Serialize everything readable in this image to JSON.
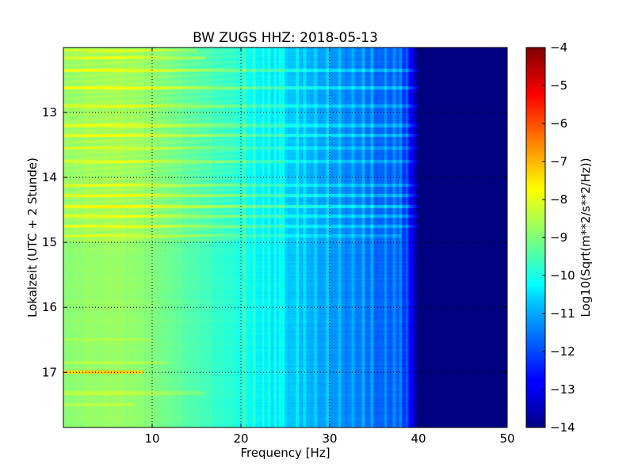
{
  "chart_data": {
    "type": "heatmap",
    "title": "BW ZUGS HHZ: 2018-05-13",
    "xlabel": "Frequency [Hz]",
    "ylabel": "Lokalzeit (UTC + 2 Stunde)",
    "xlim": [
      0,
      50
    ],
    "ylim": [
      12.0,
      17.85
    ],
    "y_inverted": true,
    "xticks": [
      10,
      20,
      30,
      40,
      50
    ],
    "yticks": [
      13,
      14,
      15,
      16,
      17
    ],
    "grid": true,
    "colormap": "jet",
    "colorbar": {
      "label": "Log10(Sqrt(m**2/s**2/Hz))",
      "range": [
        -14,
        -4
      ],
      "ticks": [
        -14,
        -13,
        -12,
        -11,
        -10,
        -9,
        -8,
        -7,
        -6,
        -5,
        -4
      ]
    },
    "spectral_profile": {
      "frequency_hz": [
        0,
        2,
        5,
        8,
        10,
        12,
        15,
        18,
        20,
        22,
        24,
        26,
        28,
        30,
        32,
        34,
        36,
        37,
        38,
        38.5,
        39,
        39.5,
        40,
        42,
        45,
        50
      ],
      "log10_amplitude": [
        -8.9,
        -8.8,
        -8.75,
        -8.8,
        -9.0,
        -9.2,
        -9.5,
        -9.8,
        -10.0,
        -10.35,
        -10.6,
        -10.85,
        -11.05,
        -11.25,
        -11.45,
        -11.6,
        -11.8,
        -11.85,
        -12.0,
        -12.3,
        -12.7,
        -13.2,
        -14.0,
        -14.0,
        -14.0,
        -14.0
      ]
    },
    "noisy_period_end_hour": 15.0,
    "spectral_lines_hz": [
      20.4,
      21.5,
      22.5,
      23.2,
      23.9,
      24.4,
      24.8,
      26.4,
      27.2,
      28.4,
      29.8,
      31.1,
      32.6,
      33.8,
      34.8,
      36.3,
      37.3,
      38.0,
      38.7
    ],
    "events": [
      {
        "hour": 12.05,
        "f_start": 0,
        "f_end": 15,
        "level": 0.5
      },
      {
        "hour": 12.16,
        "f_start": 0,
        "f_end": 16,
        "level": 0.6
      },
      {
        "hour": 12.35,
        "f_start": 0,
        "f_end": 42,
        "level": 0.7
      },
      {
        "hour": 12.62,
        "f_start": 0,
        "f_end": 42,
        "level": 0.8
      },
      {
        "hour": 12.9,
        "f_start": 0,
        "f_end": 40,
        "level": 0.6
      },
      {
        "hour": 13.2,
        "f_start": 0,
        "f_end": 40,
        "level": 0.6
      },
      {
        "hour": 13.35,
        "f_start": 0,
        "f_end": 41,
        "level": 0.7
      },
      {
        "hour": 13.55,
        "f_start": 0,
        "f_end": 40,
        "level": 0.5
      },
      {
        "hour": 13.75,
        "f_start": 0,
        "f_end": 42,
        "level": 0.6
      },
      {
        "hour": 14.12,
        "f_start": 0,
        "f_end": 40,
        "level": 0.6
      },
      {
        "hour": 14.28,
        "f_start": 0,
        "f_end": 41,
        "level": 0.7
      },
      {
        "hour": 14.45,
        "f_start": 0,
        "f_end": 40,
        "level": 0.9
      },
      {
        "hour": 14.6,
        "f_start": 0,
        "f_end": 41,
        "level": 0.7
      },
      {
        "hour": 14.75,
        "f_start": 0,
        "f_end": 40,
        "level": 0.6
      },
      {
        "hour": 14.9,
        "f_start": 0,
        "f_end": 38,
        "level": 0.5
      },
      {
        "hour": 16.5,
        "f_start": 0,
        "f_end": 10,
        "level": 0.3
      },
      {
        "hour": 16.85,
        "f_start": 0,
        "f_end": 12,
        "level": 0.3
      },
      {
        "hour": 17.0,
        "f_start": 0,
        "f_end": 9,
        "level": 1.6
      },
      {
        "hour": 17.32,
        "f_start": 0,
        "f_end": 16,
        "level": 0.4
      },
      {
        "hour": 17.5,
        "f_start": 0,
        "f_end": 8,
        "level": 0.4
      }
    ]
  }
}
